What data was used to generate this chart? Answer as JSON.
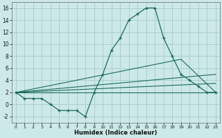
{
  "xlabel": "Humidex (Indice chaleur)",
  "bg_color": "#cce8e8",
  "grid_color": "#aacfcf",
  "line_color": "#1a6b5a",
  "xlim": [
    -0.5,
    23.5
  ],
  "ylim": [
    -3.0,
    17.0
  ],
  "xticks": [
    0,
    1,
    2,
    3,
    4,
    5,
    6,
    7,
    8,
    9,
    10,
    11,
    12,
    13,
    14,
    15,
    16,
    17,
    18,
    19,
    20,
    21,
    22,
    23
  ],
  "yticks": [
    -2,
    0,
    2,
    4,
    6,
    8,
    10,
    12,
    14,
    16
  ],
  "main_y": [
    2,
    1,
    1,
    1,
    0,
    -1,
    -1,
    -1,
    -2,
    2,
    5,
    9,
    11,
    14,
    15,
    16,
    16,
    11,
    8,
    5,
    4,
    3,
    2,
    2
  ],
  "trend_lines": [
    [
      [
        0,
        2
      ],
      [
        19,
        7.5
      ],
      [
        23,
        2.0
      ]
    ],
    [
      [
        0,
        2
      ],
      [
        23,
        5.0
      ]
    ],
    [
      [
        0,
        2
      ],
      [
        23,
        3.5
      ]
    ],
    [
      [
        0,
        2
      ],
      [
        23,
        2.0
      ]
    ]
  ]
}
